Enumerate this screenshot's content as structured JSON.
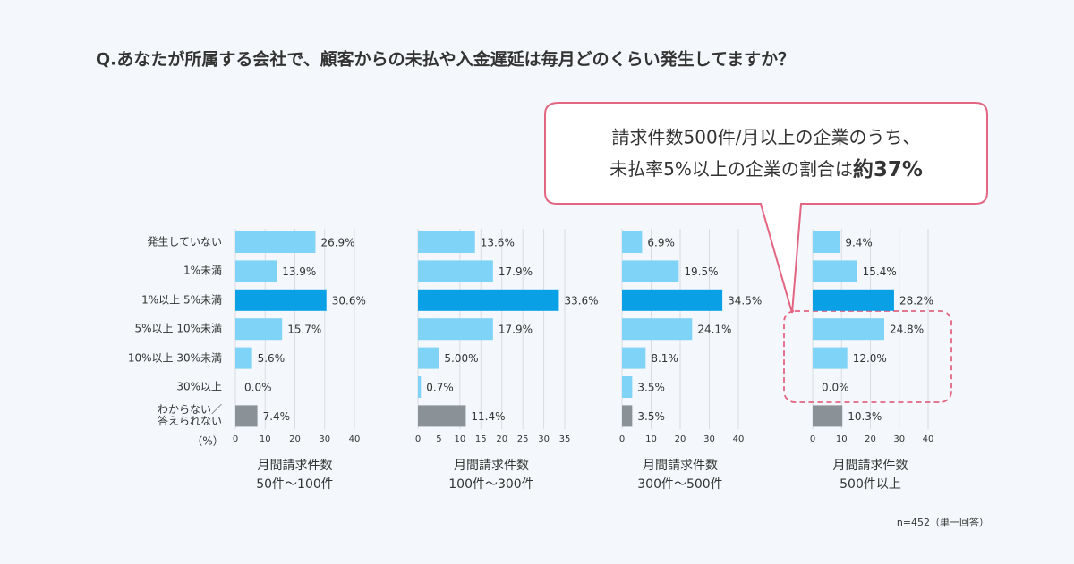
{
  "question": "Q.あなたが所属する会社で、顧客からの未払や入金遅延は毎月どのくらい発生してますか？",
  "callout": {
    "line1": "請求件数500件/月以上の企業のうち、",
    "line2": "未払率5%以上の企業の割合は",
    "emphasis": "約37%"
  },
  "unit_label": "（%）",
  "note": "n=452（単一回答）",
  "chart_data": [
    {
      "type": "hbar",
      "title": "月間請求件数",
      "subtitle": "50件〜100件",
      "categories": [
        "発生していない",
        "1%未満",
        "1%以上 5%未満",
        "5%以上 10%未満",
        "10%以上 30%未満",
        "30%以上",
        "わからない／\n答えられない"
      ],
      "values": [
        26.9,
        13.9,
        30.6,
        15.7,
        5.6,
        0.0,
        7.4
      ],
      "value_labels": [
        "26.9%",
        "13.9%",
        "30.6%",
        "15.7%",
        "5.6%",
        "0.0%",
        "7.4%"
      ],
      "colors": [
        "#7fd3f7",
        "#7fd3f7",
        "#0aa0e6",
        "#7fd3f7",
        "#7fd3f7",
        "#7fd3f7",
        "#8a9297"
      ],
      "xlim": [
        0,
        40
      ],
      "xticks": [
        0,
        10,
        20,
        30,
        40
      ]
    },
    {
      "type": "hbar",
      "title": "月間請求件数",
      "subtitle": "100件〜300件",
      "values": [
        13.6,
        17.9,
        33.6,
        17.9,
        5.0,
        0.7,
        11.4
      ],
      "value_labels": [
        "13.6%",
        "17.9%",
        "33.6%",
        "17.9%",
        "5.00%",
        "0.7%",
        "11.4%"
      ],
      "colors": [
        "#7fd3f7",
        "#7fd3f7",
        "#0aa0e6",
        "#7fd3f7",
        "#7fd3f7",
        "#7fd3f7",
        "#8a9297"
      ],
      "xlim": [
        0,
        35
      ],
      "xticks": [
        0,
        5,
        10,
        15,
        20,
        25,
        30,
        35
      ]
    },
    {
      "type": "hbar",
      "title": "月間請求件数",
      "subtitle": "300件〜500件",
      "values": [
        6.9,
        19.5,
        34.5,
        24.1,
        8.1,
        3.5,
        3.5
      ],
      "value_labels": [
        "6.9%",
        "19.5%",
        "34.5%",
        "24.1%",
        "8.1%",
        "3.5%",
        "3.5%"
      ],
      "colors": [
        "#7fd3f7",
        "#7fd3f7",
        "#0aa0e6",
        "#7fd3f7",
        "#7fd3f7",
        "#7fd3f7",
        "#8a9297"
      ],
      "xlim": [
        0,
        40
      ],
      "xticks": [
        0,
        10,
        20,
        30,
        40
      ]
    },
    {
      "type": "hbar",
      "title": "月間請求件数",
      "subtitle": "500件以上",
      "values": [
        9.4,
        15.4,
        28.2,
        24.8,
        12.0,
        0.0,
        10.3
      ],
      "value_labels": [
        "9.4%",
        "15.4%",
        "28.2%",
        "24.8%",
        "12.0%",
        "0.0%",
        "10.3%"
      ],
      "colors": [
        "#7fd3f7",
        "#7fd3f7",
        "#0aa0e6",
        "#7fd3f7",
        "#7fd3f7",
        "#7fd3f7",
        "#8a9297"
      ],
      "xlim": [
        0,
        40
      ],
      "xticks": [
        0,
        10,
        20,
        30,
        40
      ]
    }
  ]
}
